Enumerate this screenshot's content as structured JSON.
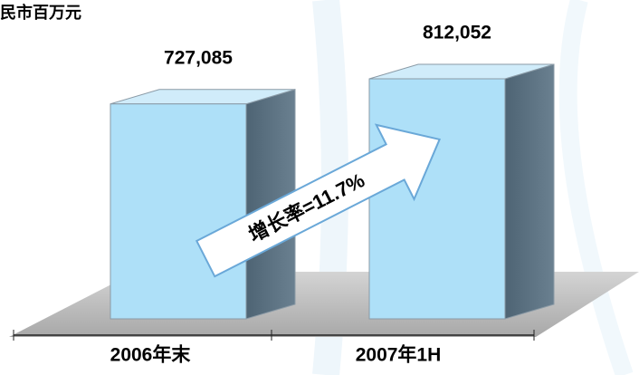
{
  "chart_data": {
    "type": "bar3d",
    "unit_label": "民市百万元",
    "categories": [
      "2006年末",
      "2007年1H"
    ],
    "values": [
      727085,
      812052
    ],
    "value_labels": [
      "727,085",
      "812,052"
    ],
    "color": "#aee0f8",
    "annotation": "增长率=11.7%"
  }
}
